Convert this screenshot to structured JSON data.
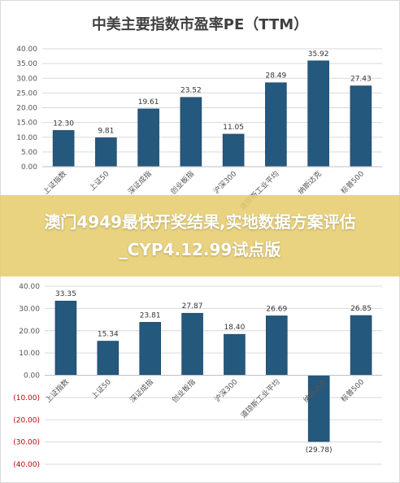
{
  "headline": "澳门4949最快开奖结果,实地数据方案评估_CYP4.12.99试点版",
  "colors": {
    "bar": "#24587d",
    "bar_dark": "#1a4565",
    "negative": "#c00000",
    "grid": "#d9d9d9",
    "overlay": "#e6cd6e"
  },
  "chart_data": [
    {
      "type": "bar",
      "title": "中美主要指数市盈率PE（TTM）",
      "categories": [
        "上证指数",
        "上证50",
        "深证成指",
        "创业板指",
        "沪深300",
        "道琼斯工业平均",
        "纳斯达克",
        "标普500"
      ],
      "values": [
        12.3,
        9.81,
        19.61,
        23.52,
        11.05,
        28.49,
        35.92,
        27.43
      ],
      "value_labels": [
        "12.30",
        "9.81",
        "19.61",
        "23.52",
        "11.05",
        "28.49",
        "35.92",
        "27.43"
      ],
      "ylim": [
        0,
        40
      ],
      "yticks": [
        0,
        5,
        10,
        15,
        20,
        25,
        30,
        35,
        40
      ],
      "ytick_labels": [
        "0.00",
        "5.00",
        "10.00",
        "15.00",
        "20.00",
        "25.00",
        "30.00",
        "35.00",
        "40.00"
      ],
      "grid": true,
      "xlabel": "",
      "ylabel": ""
    },
    {
      "type": "bar",
      "title": "",
      "categories": [
        "上证指数",
        "上证50",
        "深证成指",
        "创业板指",
        "沪深300",
        "道琼斯工业平均",
        "纳斯达克",
        "标普500"
      ],
      "values": [
        33.35,
        15.34,
        23.81,
        27.87,
        18.4,
        26.69,
        -29.78,
        26.85
      ],
      "value_labels": [
        "33.35",
        "15.34",
        "23.81",
        "27.87",
        "18.40",
        "26.69",
        "(29.78)",
        "26.85"
      ],
      "ylim": [
        -40,
        40
      ],
      "yticks": [
        40,
        30,
        20,
        10,
        0,
        -10,
        -20,
        -30,
        -40
      ],
      "ytick_labels": [
        "40.00",
        "30.00",
        "20.00",
        "10.00",
        "0.00",
        "(10.00)",
        "(20.00)",
        "(30.00)",
        "(40.00)"
      ],
      "grid": true,
      "xlabel": "",
      "ylabel": ""
    }
  ]
}
